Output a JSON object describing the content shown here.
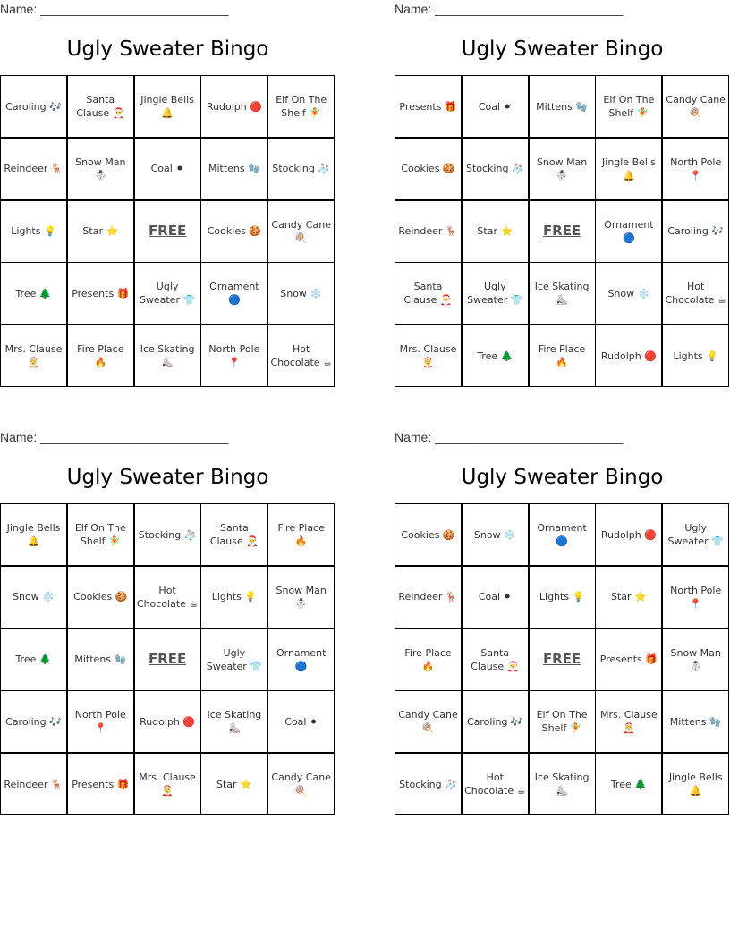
{
  "cards": [
    {
      "name_label": "Name: ___________________________",
      "title": "Ugly Sweater Bingo",
      "rows": [
        [
          "Caroling 🎶",
          "Santa Clause 🎅",
          "Jingle Bells 🔔",
          "Rudolph 🔴",
          "Elf On The Shelf 🧚"
        ],
        [
          "Reindeer 🦌",
          "Snow Man ☃️",
          "Coal ⚫",
          "Mittens 🧤",
          "Stocking 🧦"
        ],
        [
          "Lights 💡",
          "Star ⭐",
          "FREE",
          "Cookies 🍪",
          "Candy Cane 🍭"
        ],
        [
          "Tree 🌲",
          "Presents 🎁",
          "Ugly Sweater 👕",
          "Ornament 🔵",
          "Snow ❄️"
        ],
        [
          "Mrs. Clause 🤶",
          "Fire Place 🔥",
          "Ice Skating ⛸️",
          "North Pole 📍",
          "Hot Chocolate ☕"
        ]
      ]
    },
    {
      "name_label": "Name: ___________________________",
      "title": "Ugly Sweater Bingo",
      "rows": [
        [
          "Presents 🎁",
          "Coal ⚫",
          "Mittens 🧤",
          "Elf On The Shelf 🧚",
          "Candy Cane 🍭"
        ],
        [
          "Cookies 🍪",
          "Stocking 🧦",
          "Snow Man ☃️",
          "Jingle Bells 🔔",
          "North Pole 📍"
        ],
        [
          "Reindeer 🦌",
          "Star ⭐",
          "FREE",
          "Ornament 🔵",
          "Caroling 🎶"
        ],
        [
          "Santa Clause 🎅",
          "Ugly Sweater 👕",
          "Ice Skating ⛸️",
          "Snow ❄️",
          "Hot Chocolate ☕"
        ],
        [
          "Mrs. Clause 🤶",
          "Tree 🌲",
          "Fire Place 🔥",
          "Rudolph 🔴",
          "Lights 💡"
        ]
      ]
    },
    {
      "name_label": "Name: ___________________________",
      "title": "Ugly Sweater Bingo",
      "rows": [
        [
          "Jingle Bells 🔔",
          "Elf On The Shelf 🧚",
          "Stocking 🧦",
          "Santa Clause 🎅",
          "Fire Place 🔥"
        ],
        [
          "Snow ❄️",
          "Cookies 🍪",
          "Hot Chocolate ☕",
          "Lights 💡",
          "Snow Man ☃️"
        ],
        [
          "Tree 🌲",
          "Mittens 🧤",
          "FREE",
          "Ugly Sweater 👕",
          "Ornament 🔵"
        ],
        [
          "Caroling 🎶",
          "North Pole 📍",
          "Rudolph 🔴",
          "Ice Skating ⛸️",
          "Coal ⚫"
        ],
        [
          "Reindeer 🦌",
          "Presents 🎁",
          "Mrs. Clause 🤶",
          "Star ⭐",
          "Candy Cane 🍭"
        ]
      ]
    },
    {
      "name_label": "Name: ___________________________",
      "title": "Ugly Sweater Bingo",
      "rows": [
        [
          "Cookies 🍪",
          "Snow ❄️",
          "Ornament 🔵",
          "Rudolph 🔴",
          "Ugly Sweater 👕"
        ],
        [
          "Reindeer 🦌",
          "Coal ⚫",
          "Lights 💡",
          "Star ⭐",
          "North Pole 📍"
        ],
        [
          "Fire Place 🔥",
          "Santa Clause 🎅",
          "FREE",
          "Presents 🎁",
          "Snow Man ☃️"
        ],
        [
          "Candy Cane 🍭",
          "Caroling 🎶",
          "Elf On The Shelf 🧚",
          "Mrs. Clause 🤶",
          "Mittens 🧤"
        ],
        [
          "Stocking 🧦",
          "Hot Chocolate ☕",
          "Ice Skating ⛸️",
          "Tree 🌲",
          "Jingle Bells 🔔"
        ]
      ]
    }
  ]
}
